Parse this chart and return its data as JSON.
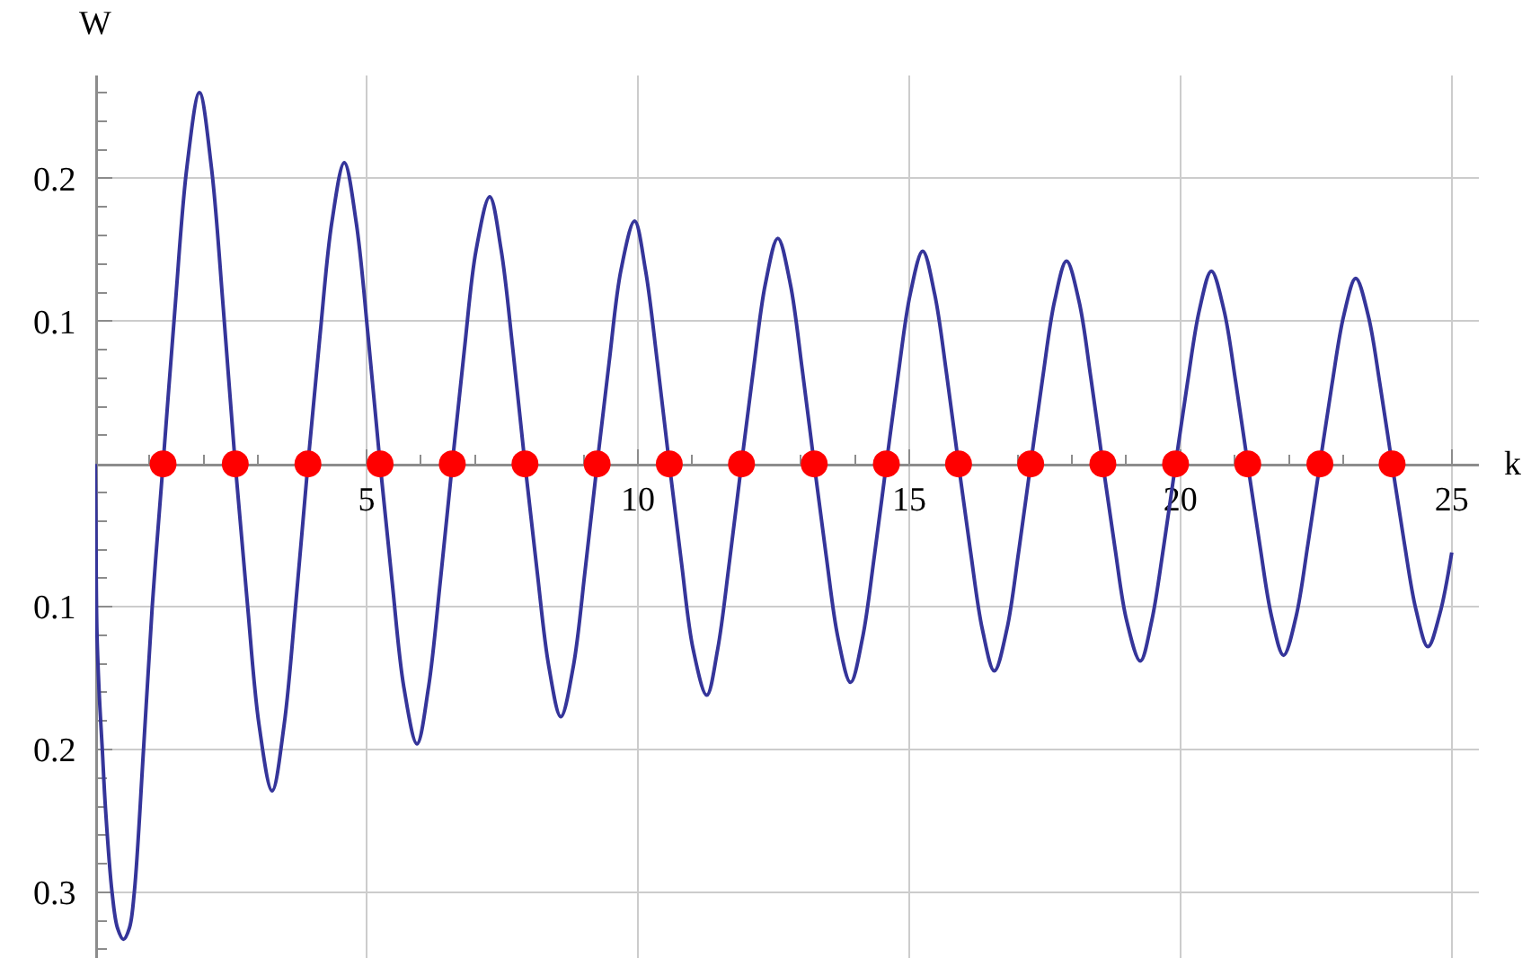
{
  "chart_data": {
    "type": "line",
    "xlabel": "k",
    "ylabel": "W",
    "xlim": [
      0,
      25.5
    ],
    "ylim": [
      -0.346,
      0.272
    ],
    "xticks": [
      {
        "value": 1,
        "label": null
      },
      {
        "value": 2,
        "label": null
      },
      {
        "value": 3,
        "label": null
      },
      {
        "value": 4,
        "label": null
      },
      5,
      {
        "value": 6,
        "label": null
      },
      {
        "value": 7,
        "label": null
      },
      {
        "value": 8,
        "label": null
      },
      {
        "value": 9,
        "label": null
      },
      10,
      {
        "value": 11,
        "label": null
      },
      {
        "value": 12,
        "label": null
      },
      {
        "value": 13,
        "label": null
      },
      {
        "value": 14,
        "label": null
      },
      15,
      {
        "value": 16,
        "label": null
      },
      {
        "value": 17,
        "label": null
      },
      {
        "value": 18,
        "label": null
      },
      {
        "value": 19,
        "label": null
      },
      20,
      {
        "value": 21,
        "label": null
      },
      {
        "value": 22,
        "label": null
      },
      {
        "value": 23,
        "label": null
      },
      {
        "value": 24,
        "label": null
      },
      25
    ],
    "yticks": [
      {
        "value": -0.34,
        "label": null
      },
      {
        "value": -0.32,
        "label": null
      },
      {
        "value": -0.3,
        "label": "0.3"
      },
      {
        "value": -0.28,
        "label": null
      },
      {
        "value": -0.26,
        "label": null
      },
      {
        "value": -0.24,
        "label": null
      },
      {
        "value": -0.22,
        "label": null
      },
      {
        "value": -0.2,
        "label": "0.2"
      },
      {
        "value": -0.18,
        "label": null
      },
      {
        "value": -0.16,
        "label": null
      },
      {
        "value": -0.14,
        "label": null
      },
      {
        "value": -0.12,
        "label": null
      },
      {
        "value": -0.1,
        "label": "0.1"
      },
      {
        "value": -0.08,
        "label": null
      },
      {
        "value": -0.06,
        "label": null
      },
      {
        "value": -0.04,
        "label": null
      },
      {
        "value": -0.02,
        "label": null
      },
      {
        "value": 0.02,
        "label": null
      },
      {
        "value": 0.04,
        "label": null
      },
      {
        "value": 0.06,
        "label": null
      },
      {
        "value": 0.08,
        "label": null
      },
      0.1,
      {
        "value": 0.12,
        "label": null
      },
      {
        "value": 0.14,
        "label": null
      },
      {
        "value": 0.16,
        "label": null
      },
      {
        "value": 0.18,
        "label": null
      },
      0.2,
      {
        "value": 0.22,
        "label": null
      },
      {
        "value": 0.24,
        "label": null
      },
      {
        "value": 0.26,
        "label": null
      }
    ],
    "grid": true,
    "series": [
      {
        "color": "#35359a",
        "x": [
          0,
          0.01,
          0.03,
          0.07,
          0.13,
          0.19,
          0.31,
          0.41,
          0.52,
          0.63,
          0.72,
          0.89,
          1.05,
          1.25,
          1.47,
          1.69,
          1.92,
          2.14,
          2.36,
          2.58,
          2.8,
          3.02,
          3.26,
          3.48,
          3.7,
          3.92,
          4.14,
          4.36,
          4.59,
          4.81,
          5.03,
          5.25,
          5.47,
          5.69,
          5.93,
          6.14,
          6.36,
          6.58,
          6.8,
          7.02,
          7.27,
          7.48,
          7.7,
          7.92,
          8.14,
          8.36,
          8.58,
          8.81,
          9.03,
          9.25,
          9.47,
          9.69,
          9.94,
          10.14,
          10.36,
          10.58,
          10.8,
          11.02,
          11.27,
          11.47,
          11.69,
          11.91,
          12.13,
          12.35,
          12.58,
          12.81,
          13.03,
          13.25,
          13.47,
          13.69,
          13.92,
          14.14,
          14.36,
          14.58,
          14.8,
          15.02,
          15.25,
          15.47,
          15.69,
          15.91,
          16.13,
          16.35,
          16.57,
          16.8,
          17.02,
          17.24,
          17.46,
          17.68,
          17.9,
          18.13,
          18.35,
          18.57,
          18.79,
          19.01,
          19.26,
          19.47,
          19.69,
          19.91,
          20.13,
          20.35,
          20.57,
          20.8,
          21.02,
          21.24,
          21.46,
          21.68,
          21.9,
          22.13,
          22.35,
          22.57,
          22.79,
          23.01,
          23.23,
          23.46,
          23.68,
          23.9,
          24.12,
          24.34,
          24.56,
          24.78,
          25.0
        ],
        "values": [
          0,
          -0.032,
          -0.116,
          -0.158,
          -0.2,
          -0.242,
          -0.3,
          -0.325,
          -0.333,
          -0.325,
          -0.3,
          -0.2,
          -0.1,
          0,
          0.109,
          0.208,
          0.26,
          0.208,
          0.109,
          0,
          -0.096,
          -0.183,
          -0.229,
          -0.183,
          -0.096,
          0,
          0.089,
          0.169,
          0.211,
          0.169,
          0.089,
          0,
          -0.082,
          -0.157,
          -0.196,
          -0.157,
          -0.082,
          0,
          0.079,
          0.15,
          0.187,
          0.15,
          0.079,
          0,
          -0.074,
          -0.142,
          -0.177,
          -0.142,
          -0.074,
          0,
          0.071,
          0.136,
          0.17,
          0.136,
          0.071,
          0,
          -0.068,
          -0.13,
          -0.162,
          -0.13,
          -0.068,
          0,
          0.066,
          0.126,
          0.158,
          0.126,
          0.066,
          0,
          -0.064,
          -0.122,
          -0.153,
          -0.122,
          -0.064,
          0,
          0.063,
          0.119,
          0.149,
          0.119,
          0.063,
          0,
          -0.061,
          -0.116,
          -0.145,
          -0.116,
          -0.061,
          0,
          0.06,
          0.114,
          0.142,
          0.114,
          0.06,
          0,
          -0.058,
          -0.11,
          -0.138,
          -0.11,
          -0.058,
          0,
          0.057,
          0.108,
          0.135,
          0.108,
          0.057,
          0,
          -0.056,
          -0.107,
          -0.134,
          -0.107,
          -0.056,
          0,
          0.055,
          0.104,
          0.13,
          0.104,
          0.055,
          0,
          -0.054,
          -0.102,
          -0.128,
          -0.105,
          -0.062
        ]
      },
      {
        "type": "scatter",
        "color": "#ff0000",
        "marker": "circle",
        "x": [
          1.25,
          2.58,
          3.92,
          5.25,
          6.58,
          7.92,
          9.25,
          10.58,
          11.91,
          13.25,
          14.58,
          15.91,
          17.24,
          18.57,
          19.91,
          21.24,
          22.57,
          23.9
        ],
        "values": [
          0,
          0,
          0,
          0,
          0,
          0,
          0,
          0,
          0,
          0,
          0,
          0,
          0,
          0,
          0,
          0,
          0,
          0
        ]
      }
    ]
  }
}
